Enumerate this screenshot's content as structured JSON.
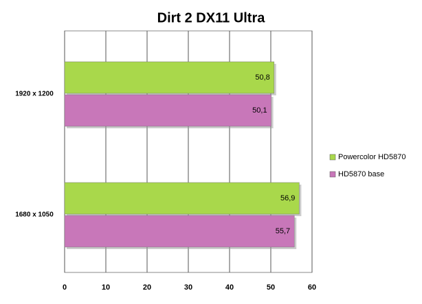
{
  "chart_data": {
    "type": "bar",
    "orientation": "horizontal",
    "title": "Dirt 2 DX11 Ultra",
    "categories": [
      "1920 x 1200",
      "1680 x 1050"
    ],
    "series": [
      {
        "name": "Powercolor HD5870",
        "color": "#a9d84b",
        "values": [
          50.8,
          56.9
        ],
        "value_labels": [
          "50,8",
          "56,9"
        ]
      },
      {
        "name": "HD5870 base",
        "color": "#c877b9",
        "values": [
          50.1,
          55.7
        ],
        "value_labels": [
          "50,1",
          "55,7"
        ]
      }
    ],
    "xlim": [
      0,
      60
    ],
    "xticks": [
      0,
      10,
      20,
      30,
      40,
      50,
      60
    ],
    "grid": true,
    "legend": "right"
  }
}
